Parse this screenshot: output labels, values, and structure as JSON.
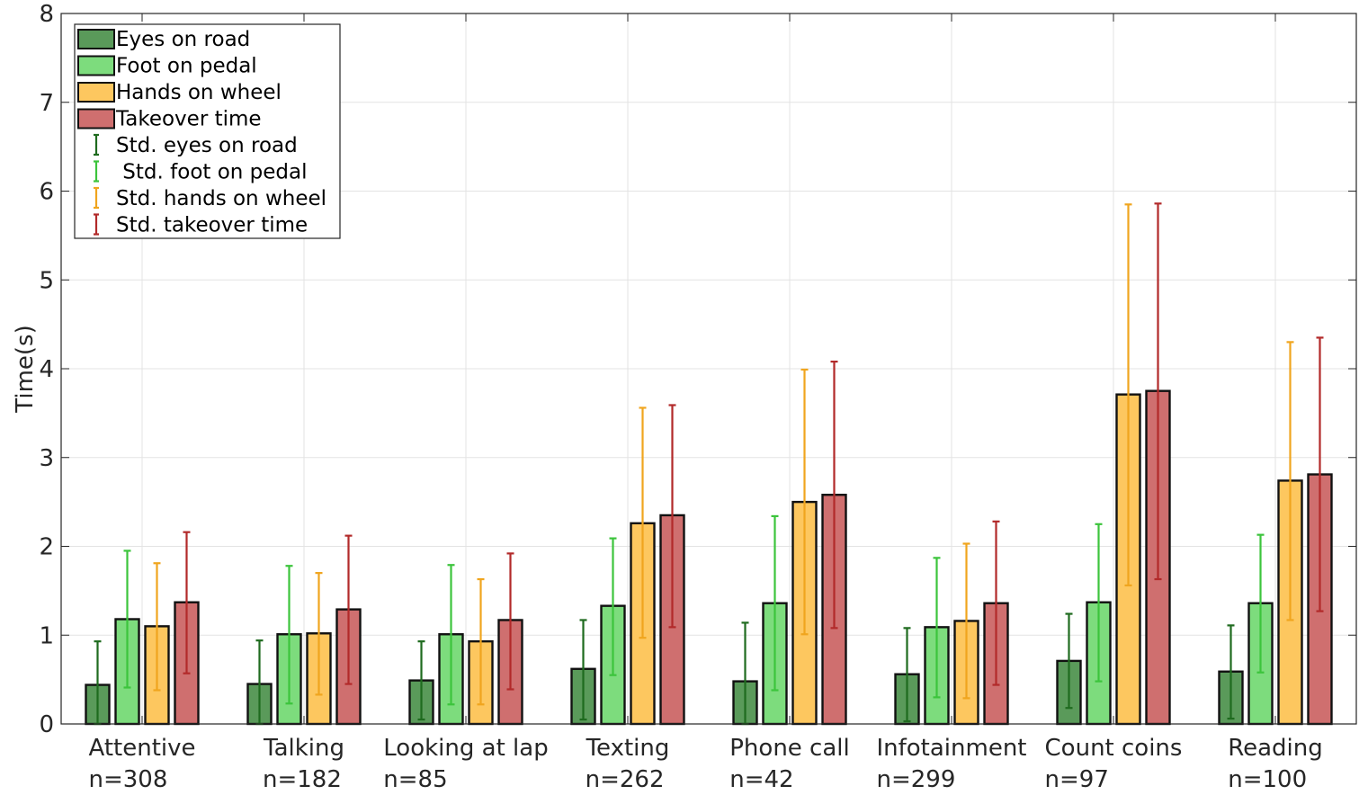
{
  "chart_data": {
    "type": "bar",
    "title": "",
    "xlabel": "",
    "ylabel": "Time(s)",
    "ylim": [
      0,
      8
    ],
    "yticks": [
      "0",
      "1",
      "2",
      "3",
      "4",
      "5",
      "6",
      "7",
      "8"
    ],
    "grid": true,
    "legend_position": "top-left",
    "categories": [
      "Attentive",
      "Talking",
      "Looking at lap",
      "Texting",
      "Phone call",
      "Infotainment",
      "Count coins",
      "Reading"
    ],
    "category_counts": [
      "n=308",
      "n=182",
      "n=85",
      "n=262",
      "n=42",
      "n=299",
      "n=97",
      "n=100"
    ],
    "series": [
      {
        "name": "Eyes on road",
        "std_name": "Std. eyes on road",
        "color": "#5a9a5a",
        "std_color": "#1f6b1f",
        "values": [
          0.44,
          0.45,
          0.49,
          0.62,
          0.48,
          0.56,
          0.71,
          0.59
        ],
        "std_low": [
          0.0,
          0.0,
          0.05,
          0.05,
          0.0,
          0.03,
          0.18,
          0.06
        ],
        "std_high": [
          0.93,
          0.94,
          0.93,
          1.17,
          1.14,
          1.08,
          1.24,
          1.11
        ]
      },
      {
        "name": "Foot on pedal",
        "std_name": " Std. foot on pedal",
        "color": "#7ddc7d",
        "std_color": "#3cc43c",
        "values": [
          1.18,
          1.01,
          1.01,
          1.33,
          1.36,
          1.09,
          1.37,
          1.36
        ],
        "std_low": [
          0.41,
          0.23,
          0.22,
          0.55,
          0.38,
          0.3,
          0.48,
          0.58
        ],
        "std_high": [
          1.95,
          1.78,
          1.79,
          2.09,
          2.34,
          1.87,
          2.25,
          2.13
        ]
      },
      {
        "name": "Hands on wheel",
        "std_name": "Std. hands on wheel",
        "color": "#fdc75f",
        "std_color": "#f0a51e",
        "values": [
          1.1,
          1.02,
          0.93,
          2.26,
          2.5,
          1.16,
          3.71,
          2.74
        ],
        "std_low": [
          0.38,
          0.33,
          0.22,
          0.97,
          1.01,
          0.29,
          1.56,
          1.17
        ],
        "std_high": [
          1.81,
          1.7,
          1.63,
          3.56,
          3.99,
          2.03,
          5.85,
          4.3
        ]
      },
      {
        "name": "Takeover time",
        "std_name": "Std. takeover time",
        "color": "#cf6f6f",
        "std_color": "#b22a2a",
        "values": [
          1.37,
          1.29,
          1.17,
          2.35,
          2.58,
          1.36,
          3.75,
          2.81
        ],
        "std_low": [
          0.57,
          0.45,
          0.39,
          1.09,
          1.08,
          0.44,
          1.63,
          1.27
        ],
        "std_high": [
          2.16,
          2.12,
          1.92,
          3.59,
          4.08,
          2.28,
          5.86,
          4.35
        ]
      }
    ]
  }
}
